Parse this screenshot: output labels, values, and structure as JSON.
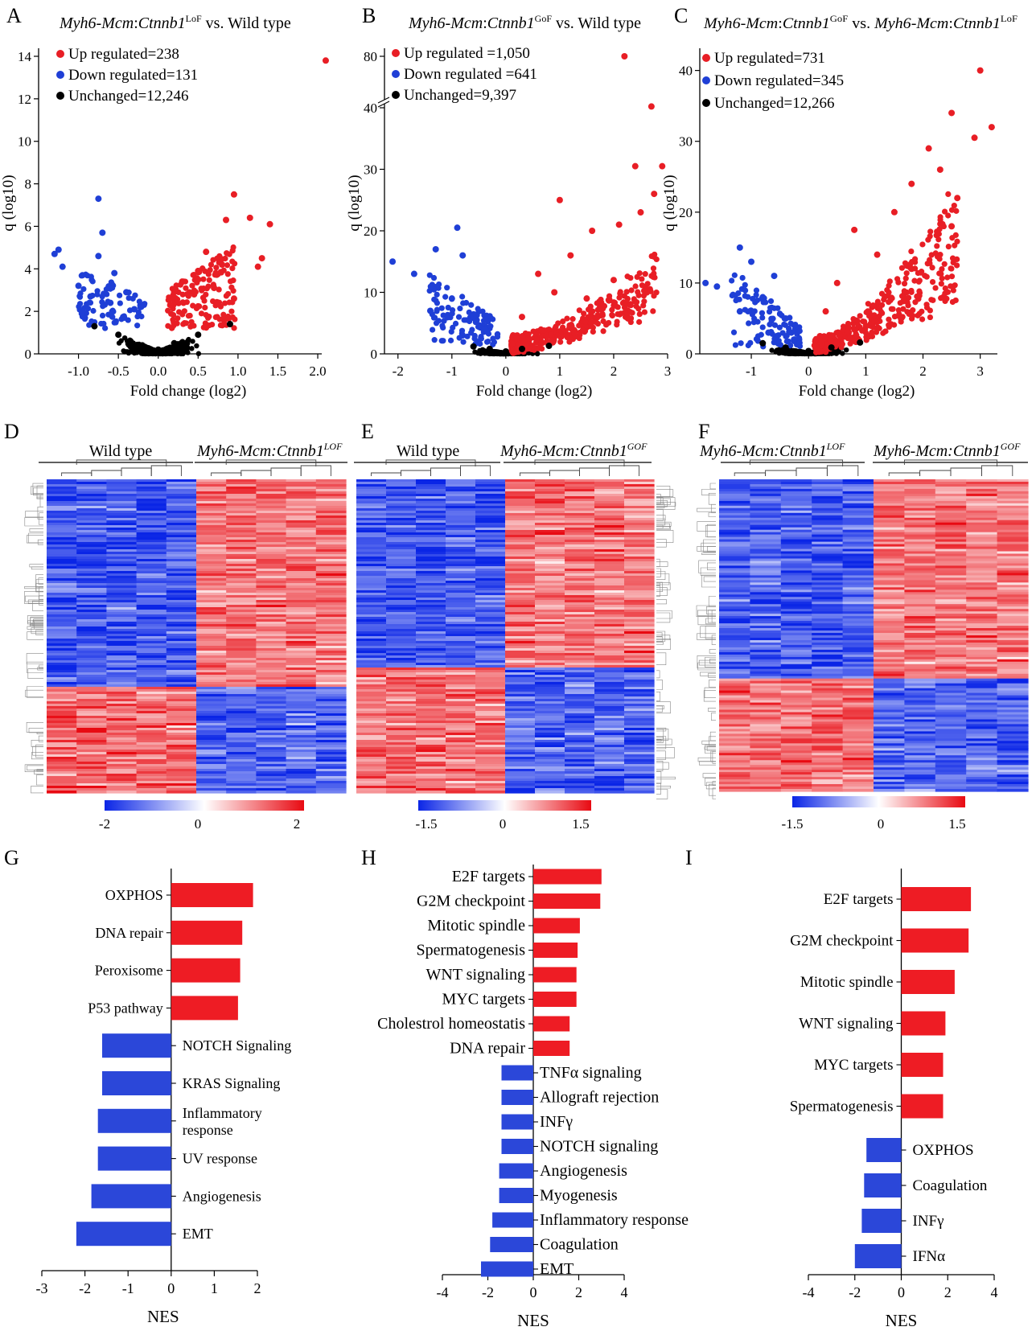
{
  "colors": {
    "up": "#e81e25",
    "down": "#1f3fd6",
    "unchanged": "#000000",
    "bar_up": "#ee1c24",
    "bar_down": "#2b47d9"
  },
  "panels": {
    "A": {
      "letter": "A",
      "title_italic": "Myh6-Mcm",
      "title_sep": ":",
      "title_gene": "Ctnnb1",
      "title_sup": "LoF",
      "title_rest": " vs. Wild type"
    },
    "B": {
      "letter": "B",
      "title_italic": "Myh6-Mcm",
      "title_sep": ":",
      "title_gene": "Ctnnb1",
      "title_sup": "GoF",
      "title_rest": " vs. Wild type"
    },
    "C": {
      "letter": "C",
      "title_a_italic": "Myh6-Mcm",
      "title_a_sep": ":",
      "title_a_gene": "Ctnnb1",
      "title_a_sup": "GoF",
      "title_mid": " vs. ",
      "title_b_italic": "Myh6-Mcm",
      "title_b_sep": ":",
      "title_b_gene": "Ctnnb1",
      "title_b_sup": "LoF"
    },
    "D": {
      "letter": "D",
      "left_group": "Wild type",
      "right_group": "Myh6-Mcm:Ctnnb1",
      "right_sup": "LOF"
    },
    "E": {
      "letter": "E",
      "left_group": "Wild type",
      "right_group": "Myh6-Mcm:Ctnnb1",
      "right_sup": "GOF"
    },
    "F": {
      "letter": "F",
      "left_group": "Myh6-Mcm:Ctnnb1",
      "left_sup": "LOF",
      "right_group": "Myh6-Mcm:Ctnnb1",
      "right_sup": "GOF"
    },
    "G": {
      "letter": "G"
    },
    "H": {
      "letter": "H"
    },
    "I": {
      "letter": "I"
    }
  },
  "heat_scales": {
    "D": {
      "min": "-2",
      "mid": "0",
      "max": "2"
    },
    "E": {
      "min": "-1.5",
      "mid": "0",
      "max": "1.5"
    },
    "F": {
      "min": "-1.5",
      "mid": "0",
      "max": "1.5"
    }
  },
  "chart_data": [
    {
      "panel": "A",
      "type": "scatter",
      "xlabel": "Fold change (log2)",
      "ylabel": "q (log10)",
      "xlim": [
        -1.5,
        2.0
      ],
      "ylim": [
        0,
        14
      ],
      "xticks": [
        "-1.0",
        "-0.5",
        "0.0",
        "0.5",
        "1.0",
        "1.5",
        "2.0"
      ],
      "yticks": [
        "0",
        "2",
        "4",
        "6",
        "8",
        "10",
        "12",
        "14"
      ],
      "legend": [
        "Up regulated=238",
        "Down regulated=131",
        "Unchanged=12,246"
      ],
      "series": [
        {
          "name": "Up regulated=238",
          "points": [
            [
              2.1,
              13.8
            ],
            [
              1.4,
              6.1
            ],
            [
              1.3,
              4.5
            ],
            [
              1.25,
              4.1
            ],
            [
              1.15,
              6.4
            ],
            [
              0.95,
              7.5
            ],
            [
              0.85,
              6.3
            ],
            [
              0.6,
              4.8
            ],
            [
              0.8,
              4.2
            ],
            [
              0.5,
              3.9
            ],
            [
              0.3,
              3.4
            ],
            [
              0.2,
              2.9
            ],
            [
              0.15,
              2.3
            ],
            [
              0.45,
              2.8
            ],
            [
              0.7,
              3.1
            ],
            [
              0.95,
              2.6
            ]
          ]
        },
        {
          "name": "Down regulated=131",
          "points": [
            [
              -1.25,
              4.9
            ],
            [
              -1.2,
              4.1
            ],
            [
              -1.3,
              4.7
            ],
            [
              -0.75,
              7.3
            ],
            [
              -0.7,
              5.7
            ],
            [
              -0.75,
              4.6
            ],
            [
              -0.55,
              3.8
            ],
            [
              -0.95,
              3.7
            ],
            [
              -0.4,
              2.9
            ],
            [
              -0.6,
              2.4
            ],
            [
              -0.3,
              2.1
            ],
            [
              -0.85,
              2.7
            ],
            [
              -1.0,
              3.2
            ]
          ]
        },
        {
          "name": "Unchanged=12,246",
          "points": [
            [
              -0.8,
              1.3
            ],
            [
              -0.5,
              0.9
            ],
            [
              -0.2,
              0.4
            ],
            [
              0.0,
              0.2
            ],
            [
              0.2,
              0.5
            ],
            [
              0.5,
              0.9
            ],
            [
              0.9,
              1.4
            ]
          ]
        }
      ]
    },
    {
      "panel": "B",
      "type": "scatter",
      "xlabel": "Fold change (log2)",
      "ylabel": "q (log10)",
      "xlim": [
        -2.2,
        3.0
      ],
      "ylim": [
        0,
        80
      ],
      "axis_break": [
        40,
        80
      ],
      "xticks": [
        "-2",
        "-1",
        "0",
        "1",
        "2",
        "3"
      ],
      "yticks": [
        "0",
        "10",
        "20",
        "30",
        "40",
        "80"
      ],
      "legend": [
        "Up regulated =1,050",
        "Down regulated =641",
        "Unchanged=9,397"
      ],
      "series": [
        {
          "name": "Up regulated =1,050",
          "points": [
            [
              2.2,
              80
            ],
            [
              2.7,
              41
            ],
            [
              2.9,
              30.5
            ],
            [
              2.4,
              30.5
            ],
            [
              2.75,
              26
            ],
            [
              1.0,
              25
            ],
            [
              2.5,
              23
            ],
            [
              2.1,
              21
            ],
            [
              1.6,
              20
            ],
            [
              1.2,
              16
            ],
            [
              0.6,
              13
            ],
            [
              0.9,
              10
            ],
            [
              0.3,
              6
            ],
            [
              1.5,
              9
            ],
            [
              2.0,
              12
            ],
            [
              0.2,
              2.5
            ]
          ]
        },
        {
          "name": "Down regulated =641",
          "points": [
            [
              -2.1,
              15
            ],
            [
              -0.9,
              20.5
            ],
            [
              -0.8,
              16
            ],
            [
              -1.3,
              17
            ],
            [
              -1.7,
              13
            ],
            [
              -1.0,
              9
            ],
            [
              -0.6,
              6
            ],
            [
              -0.4,
              4
            ],
            [
              -1.4,
              7
            ],
            [
              -0.8,
              3
            ]
          ]
        },
        {
          "name": "Unchanged=9,397",
          "points": [
            [
              -0.6,
              1.2
            ],
            [
              -0.3,
              0.8
            ],
            [
              0.0,
              0.4
            ],
            [
              0.3,
              0.8
            ],
            [
              0.8,
              1.3
            ]
          ]
        }
      ]
    },
    {
      "panel": "C",
      "type": "scatter",
      "xlabel": "Fold change (log2)",
      "ylabel": "q (log10)",
      "xlim": [
        -1.9,
        3.3
      ],
      "ylim": [
        0,
        42
      ],
      "xticks": [
        "-1",
        "0",
        "1",
        "2",
        "3"
      ],
      "yticks": [
        "0",
        "10",
        "20",
        "30",
        "40"
      ],
      "legend": [
        "Up regulated=731",
        "Down regulated=345",
        "Unchanged=12,266"
      ],
      "series": [
        {
          "name": "Up regulated=731",
          "points": [
            [
              3.0,
              40
            ],
            [
              2.5,
              34
            ],
            [
              3.2,
              32
            ],
            [
              2.9,
              30.5
            ],
            [
              2.1,
              29
            ],
            [
              2.3,
              26
            ],
            [
              1.8,
              24
            ],
            [
              2.6,
              22
            ],
            [
              1.5,
              20
            ],
            [
              0.8,
              17.5
            ],
            [
              1.2,
              14
            ],
            [
              0.5,
              10
            ],
            [
              0.3,
              6
            ],
            [
              1.8,
              12
            ],
            [
              2.5,
              18
            ],
            [
              0.2,
              2.5
            ]
          ]
        },
        {
          "name": "Down regulated=345",
          "points": [
            [
              -1.8,
              10
            ],
            [
              -1.6,
              9.5
            ],
            [
              -1.2,
              15
            ],
            [
              -1.0,
              13
            ],
            [
              -0.6,
              11
            ],
            [
              -0.8,
              8
            ],
            [
              -0.4,
              5
            ],
            [
              -1.2,
              6
            ],
            [
              -0.3,
              3
            ],
            [
              -0.7,
              3
            ]
          ]
        },
        {
          "name": "Unchanged=12,266",
          "points": [
            [
              -0.8,
              1.5
            ],
            [
              -0.4,
              0.9
            ],
            [
              0.0,
              0.4
            ],
            [
              0.4,
              0.9
            ],
            [
              0.9,
              1.6
            ]
          ]
        }
      ]
    },
    {
      "panel": "G",
      "type": "bar",
      "orientation": "horizontal",
      "xlabel": "NES",
      "xlim": [
        -3,
        2
      ],
      "xticks": [
        "-3",
        "-2",
        "-1",
        "0",
        "1",
        "2"
      ],
      "categories": [
        "OXPHOS",
        "DNA repair",
        "Peroxisome",
        "P53 pathway",
        "NOTCH Signaling",
        "KRAS Signaling",
        "Inflammatory response",
        "UV response",
        "Angiogenesis",
        "EMT"
      ],
      "values": [
        1.9,
        1.65,
        1.6,
        1.55,
        -1.6,
        -1.6,
        -1.7,
        -1.7,
        -1.85,
        -2.2
      ]
    },
    {
      "panel": "H",
      "type": "bar",
      "orientation": "horizontal",
      "xlabel": "NES",
      "xlim": [
        -4,
        4
      ],
      "xticks": [
        "-4",
        "-2",
        "0",
        "2",
        "4"
      ],
      "categories": [
        "E2F targets",
        "G2M checkpoint",
        "Mitotic spindle",
        "Spermatogenesis",
        "WNT signaling",
        "MYC targets",
        "Cholestrol homeostatis",
        "DNA repair",
        "TNFα signaling",
        "Allograft rejection",
        "INFγ",
        "NOTCH signaling",
        "Angiogenesis",
        "Myogenesis",
        "Inflammatory response",
        "Coagulation",
        "EMT"
      ],
      "values": [
        3.0,
        2.95,
        2.05,
        1.95,
        1.9,
        1.9,
        1.6,
        1.6,
        -1.4,
        -1.4,
        -1.4,
        -1.4,
        -1.5,
        -1.5,
        -1.8,
        -1.9,
        -2.3
      ]
    },
    {
      "panel": "I",
      "type": "bar",
      "orientation": "horizontal",
      "xlabel": "NES",
      "xlim": [
        -4,
        4
      ],
      "xticks": [
        "-4",
        "-2",
        "0",
        "2",
        "4"
      ],
      "categories": [
        "E2F targets",
        "G2M checkpoint",
        "Mitotic spindle",
        "WNT signaling",
        "MYC targets",
        "Spermatogenesis",
        "OXPHOS",
        "Coagulation",
        "INFγ",
        "IFNα"
      ],
      "values": [
        3.0,
        2.9,
        2.3,
        1.9,
        1.8,
        1.8,
        -1.5,
        -1.6,
        -1.7,
        -2.0
      ]
    }
  ]
}
